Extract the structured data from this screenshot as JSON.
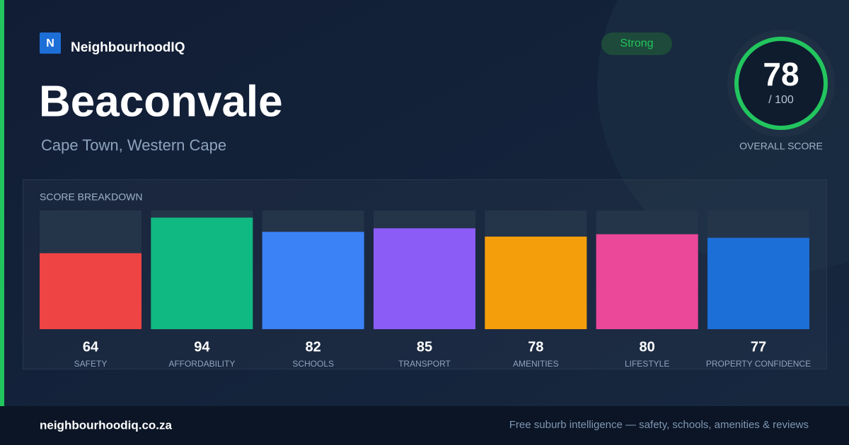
{
  "brand": {
    "logo_letter": "N",
    "name": "NeighbourhoodIQ"
  },
  "suburb": {
    "name": "Beaconvale",
    "location": "Cape Town, Western Cape"
  },
  "badge": "Strong",
  "overall": {
    "score": 78,
    "max_label": "/ 100",
    "label": "OVERALL SCORE"
  },
  "chart_data": {
    "type": "bar",
    "title": "SCORE BREAKDOWN",
    "categories": [
      "SAFETY",
      "AFFORDABILITY",
      "SCHOOLS",
      "TRANSPORT",
      "AMENITIES",
      "LIFESTYLE",
      "PROPERTY CONFIDENCE"
    ],
    "values": [
      64,
      94,
      82,
      85,
      78,
      80,
      77
    ],
    "colors": [
      "#ef4444",
      "#10b981",
      "#3b82f6",
      "#8b5cf6",
      "#f59e0b",
      "#ec4899",
      "#1d6fd8"
    ],
    "ylim": [
      0,
      100
    ]
  },
  "footer": {
    "url": "neighbourhoodiq.co.za",
    "tagline": "Free suburb intelligence — safety, schools, amenities & reviews"
  }
}
